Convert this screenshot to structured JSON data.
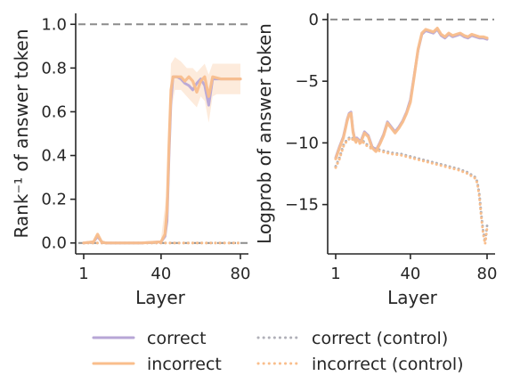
{
  "colors": {
    "correct": "#b7a6d6",
    "incorrect": "#f9be8c",
    "reference": "#8c8c8c",
    "axis": "#262626"
  },
  "chart_data": [
    {
      "type": "line",
      "xlabel": "Layer",
      "ylabel": "Rank⁻¹ of answer token",
      "xlim": [
        1,
        80
      ],
      "ylim": [
        -0.05,
        1.05
      ],
      "x_ticks": [
        "1",
        "40",
        "80"
      ],
      "x_tick_values": [
        1,
        40,
        80
      ],
      "y_ticks": [
        "0.0",
        "0.2",
        "0.4",
        "0.6",
        "0.8",
        "1.0"
      ],
      "y_tick_values": [
        0.0,
        0.2,
        0.4,
        0.6,
        0.8,
        1.0
      ],
      "reference_lines": [
        1.0,
        0.0
      ],
      "grid": false,
      "series": [
        {
          "name": "correct",
          "style": "solid",
          "x": [
            1,
            6,
            8,
            10,
            12,
            20,
            30,
            40,
            42,
            43,
            44,
            45,
            46,
            48,
            50,
            52,
            54,
            56,
            58,
            60,
            62,
            64,
            66,
            70,
            75,
            80
          ],
          "values": [
            0.0,
            0.005,
            0.03,
            0.005,
            0.0,
            0.0,
            0.0,
            0.005,
            0.03,
            0.1,
            0.4,
            0.65,
            0.76,
            0.76,
            0.75,
            0.73,
            0.72,
            0.7,
            0.73,
            0.75,
            0.72,
            0.63,
            0.75,
            0.75,
            0.75,
            0.75
          ]
        },
        {
          "name": "incorrect",
          "style": "solid",
          "x": [
            1,
            6,
            8,
            10,
            12,
            20,
            30,
            40,
            42,
            43,
            44,
            45,
            46,
            48,
            50,
            52,
            54,
            56,
            58,
            60,
            62,
            64,
            66,
            70,
            75,
            80
          ],
          "values": [
            0.0,
            0.005,
            0.04,
            0.005,
            0.0,
            0.0,
            0.0,
            0.005,
            0.04,
            0.15,
            0.45,
            0.7,
            0.76,
            0.76,
            0.76,
            0.74,
            0.76,
            0.74,
            0.69,
            0.74,
            0.76,
            0.67,
            0.76,
            0.75,
            0.75,
            0.75
          ]
        },
        {
          "name": "correct (control)",
          "style": "dotted",
          "x": [
            1,
            20,
            40,
            42,
            44,
            50,
            60,
            70,
            80
          ],
          "values": [
            0.0,
            0.0,
            0.0,
            0.0,
            0.0,
            0.0,
            0.0,
            0.0,
            0.0
          ]
        },
        {
          "name": "incorrect (control)",
          "style": "dotted",
          "x": [
            1,
            20,
            40,
            42,
            44,
            50,
            60,
            70,
            80
          ],
          "values": [
            0.0,
            0.0,
            0.0,
            0.0,
            0.0,
            0.0,
            0.0,
            0.0,
            0.0
          ]
        }
      ],
      "band": {
        "series": "incorrect",
        "x": [
          40,
          43,
          45,
          47,
          50,
          53,
          56,
          58,
          60,
          62,
          64,
          66,
          68,
          70,
          75,
          80
        ],
        "lower": [
          0.0,
          0.1,
          0.6,
          0.7,
          0.7,
          0.67,
          0.64,
          0.62,
          0.67,
          0.65,
          0.55,
          0.67,
          0.68,
          0.68,
          0.68,
          0.68
        ],
        "upper": [
          0.02,
          0.25,
          0.82,
          0.85,
          0.83,
          0.8,
          0.8,
          0.78,
          0.8,
          0.82,
          0.77,
          0.82,
          0.82,
          0.82,
          0.82,
          0.82
        ]
      }
    },
    {
      "type": "line",
      "xlabel": "Layer",
      "ylabel": "Logprob of answer token",
      "xlim": [
        1,
        80
      ],
      "ylim": [
        -19,
        0.5
      ],
      "x_ticks": [
        "1",
        "40",
        "80"
      ],
      "x_tick_values": [
        1,
        40,
        80
      ],
      "y_ticks": [
        "0",
        "−5",
        "−10",
        "−15"
      ],
      "y_tick_values": [
        0,
        -5,
        -10,
        -15
      ],
      "reference_lines": [
        0
      ],
      "grid": false,
      "series": [
        {
          "name": "correct",
          "style": "solid",
          "x": [
            1,
            3,
            5,
            6,
            7,
            8,
            9,
            10,
            11,
            12,
            14,
            16,
            18,
            20,
            22,
            24,
            26,
            28,
            30,
            32,
            34,
            36,
            38,
            40,
            42,
            44,
            46,
            48,
            50,
            52,
            54,
            56,
            58,
            60,
            62,
            64,
            66,
            68,
            70,
            72,
            74,
            76,
            78,
            80
          ],
          "values": [
            -11.2,
            -10.3,
            -9.5,
            -8.8,
            -8.1,
            -7.6,
            -7.5,
            -9.0,
            -9.7,
            -9.6,
            -9.9,
            -9.1,
            -9.4,
            -10.3,
            -10.6,
            -10.0,
            -9.3,
            -8.3,
            -8.7,
            -9.1,
            -8.7,
            -8.2,
            -7.5,
            -6.5,
            -4.5,
            -2.5,
            -1.2,
            -0.9,
            -1.0,
            -1.1,
            -0.8,
            -1.3,
            -1.5,
            -1.2,
            -1.4,
            -1.3,
            -1.2,
            -1.4,
            -1.5,
            -1.3,
            -1.4,
            -1.5,
            -1.5,
            -1.6
          ]
        },
        {
          "name": "incorrect",
          "style": "solid",
          "x": [
            1,
            3,
            5,
            6,
            7,
            8,
            9,
            10,
            11,
            12,
            14,
            16,
            18,
            20,
            22,
            24,
            26,
            28,
            30,
            32,
            34,
            36,
            38,
            40,
            42,
            44,
            46,
            48,
            50,
            52,
            54,
            56,
            58,
            60,
            62,
            64,
            66,
            68,
            70,
            72,
            74,
            76,
            78,
            80
          ],
          "values": [
            -11.3,
            -10.4,
            -9.6,
            -8.9,
            -8.2,
            -7.7,
            -7.6,
            -9.1,
            -9.8,
            -9.7,
            -10.0,
            -9.2,
            -9.5,
            -10.4,
            -10.7,
            -10.1,
            -9.4,
            -8.4,
            -8.8,
            -9.2,
            -8.8,
            -8.3,
            -7.6,
            -6.7,
            -4.6,
            -2.4,
            -1.1,
            -0.8,
            -0.9,
            -1.0,
            -0.7,
            -1.2,
            -1.4,
            -1.1,
            -1.3,
            -1.2,
            -1.1,
            -1.3,
            -1.4,
            -1.2,
            -1.3,
            -1.4,
            -1.4,
            -1.5
          ]
        },
        {
          "name": "correct (control)",
          "style": "dotted",
          "x": [
            1,
            3,
            5,
            7,
            9,
            11,
            13,
            15,
            17,
            20,
            25,
            30,
            35,
            40,
            45,
            50,
            55,
            60,
            65,
            70,
            72,
            74,
            75,
            76,
            77,
            78,
            79,
            80
          ],
          "values": [
            -11.9,
            -11.2,
            -10.2,
            -9.7,
            -9.5,
            -9.8,
            -10.0,
            -9.8,
            -10.1,
            -10.4,
            -10.6,
            -10.8,
            -10.9,
            -11.1,
            -11.3,
            -11.5,
            -11.7,
            -11.9,
            -12.1,
            -12.4,
            -12.6,
            -12.8,
            -13.2,
            -14.2,
            -15.8,
            -17.2,
            -18.0,
            -16.7
          ]
        },
        {
          "name": "incorrect (control)",
          "style": "dotted",
          "x": [
            1,
            3,
            5,
            7,
            9,
            11,
            13,
            15,
            17,
            20,
            25,
            30,
            35,
            40,
            45,
            50,
            55,
            60,
            65,
            70,
            72,
            74,
            75,
            76,
            77,
            78,
            79,
            80
          ],
          "values": [
            -12.0,
            -11.3,
            -10.3,
            -9.8,
            -9.6,
            -9.9,
            -10.1,
            -9.9,
            -10.2,
            -10.5,
            -10.7,
            -10.9,
            -11.0,
            -11.2,
            -11.4,
            -11.6,
            -11.8,
            -12.0,
            -12.2,
            -12.5,
            -12.7,
            -12.9,
            -13.3,
            -14.4,
            -16.0,
            -17.4,
            -18.2,
            -16.9
          ]
        }
      ]
    }
  ],
  "legend": {
    "placement": "bottom",
    "items": [
      {
        "label": "correct",
        "color": "#b7a6d6",
        "style": "solid"
      },
      {
        "label": "incorrect",
        "color": "#f9be8c",
        "style": "solid"
      },
      {
        "label": "correct (control)",
        "color": "#b0b0b8",
        "style": "dotted"
      },
      {
        "label": "incorrect (control)",
        "color": "#f9be8c",
        "style": "dotted"
      }
    ]
  }
}
